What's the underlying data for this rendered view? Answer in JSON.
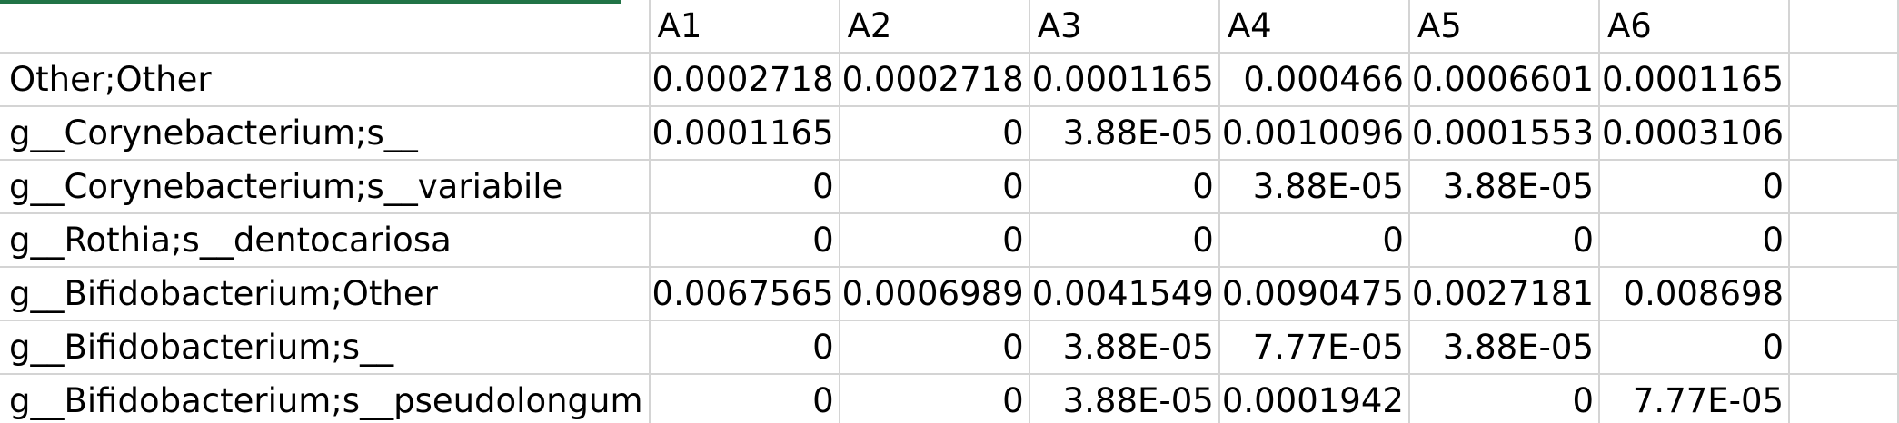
{
  "sheet": {
    "accent_color": "#217346",
    "grid_color": "#d4d4d4",
    "columns": [
      "A1",
      "A2",
      "A3",
      "A4",
      "A5",
      "A6"
    ],
    "rows": [
      {
        "label": "Other;Other",
        "values": [
          "0.0002718",
          "0.0002718",
          "0.0001165",
          "0.000466",
          "0.0006601",
          "0.0001165"
        ]
      },
      {
        "label": "g__Corynebacterium;s__",
        "values": [
          "0.0001165",
          "0",
          "3.88E-05",
          "0.0010096",
          "0.0001553",
          "0.0003106"
        ]
      },
      {
        "label": "g__Corynebacterium;s__variabile",
        "values": [
          "0",
          "0",
          "0",
          "3.88E-05",
          "3.88E-05",
          "0"
        ]
      },
      {
        "label": "g__Rothia;s__dentocariosa",
        "values": [
          "0",
          "0",
          "0",
          "0",
          "0",
          "0"
        ]
      },
      {
        "label": "g__Bifidobacterium;Other",
        "values": [
          "0.0067565",
          "0.0006989",
          "0.0041549",
          "0.0090475",
          "0.0027181",
          "0.008698"
        ]
      },
      {
        "label": "g__Bifidobacterium;s__",
        "values": [
          "0",
          "0",
          "3.88E-05",
          "7.77E-05",
          "3.88E-05",
          "0"
        ]
      },
      {
        "label": "g__Bifidobacterium;s__pseudolongum",
        "values": [
          "0",
          "0",
          "3.88E-05",
          "0.0001942",
          "0",
          "7.77E-05"
        ]
      }
    ]
  }
}
